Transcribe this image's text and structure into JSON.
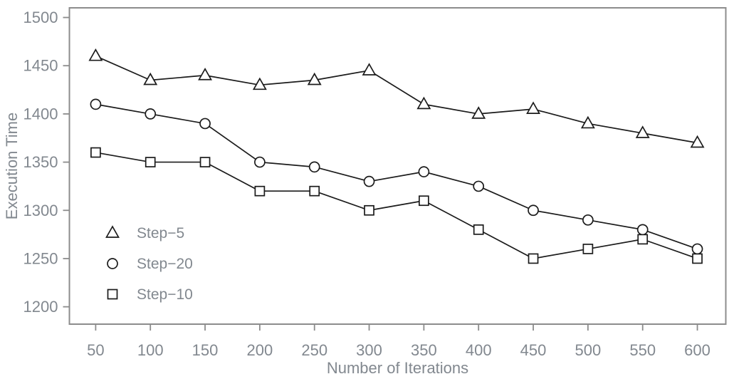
{
  "chart_data": {
    "type": "line",
    "title": "",
    "xlabel": "Number of Iterations",
    "ylabel": "Execution Time",
    "x": [
      50,
      100,
      150,
      200,
      250,
      300,
      350,
      400,
      450,
      500,
      550,
      600
    ],
    "x_ticks": [
      "50",
      "100",
      "150",
      "200",
      "250",
      "300",
      "350",
      "400",
      "450",
      "500",
      "550",
      "600"
    ],
    "y_ticks": [
      "1200",
      "1250",
      "1300",
      "1350",
      "1400",
      "1450",
      "1500"
    ],
    "xlim": [
      26,
      626
    ],
    "ylim": [
      1182,
      1510
    ],
    "grid": false,
    "legend_position": "inside-lower-left",
    "series": [
      {
        "name": "Step−5",
        "marker": "triangle",
        "values": [
          1460,
          1435,
          1440,
          1430,
          1435,
          1445,
          1410,
          1400,
          1405,
          1390,
          1380,
          1370
        ]
      },
      {
        "name": "Step−20",
        "marker": "circle",
        "values": [
          1410,
          1400,
          1390,
          1350,
          1345,
          1330,
          1340,
          1325,
          1300,
          1290,
          1280,
          1260
        ]
      },
      {
        "name": "Step−10",
        "marker": "square",
        "values": [
          1360,
          1350,
          1350,
          1320,
          1320,
          1300,
          1310,
          1280,
          1250,
          1260,
          1270,
          1250
        ]
      }
    ],
    "colors": {
      "line": "#1b1b1b",
      "marker_fill": "#ffffff",
      "axis": "#8c8c8c",
      "text": "#82888f"
    }
  }
}
